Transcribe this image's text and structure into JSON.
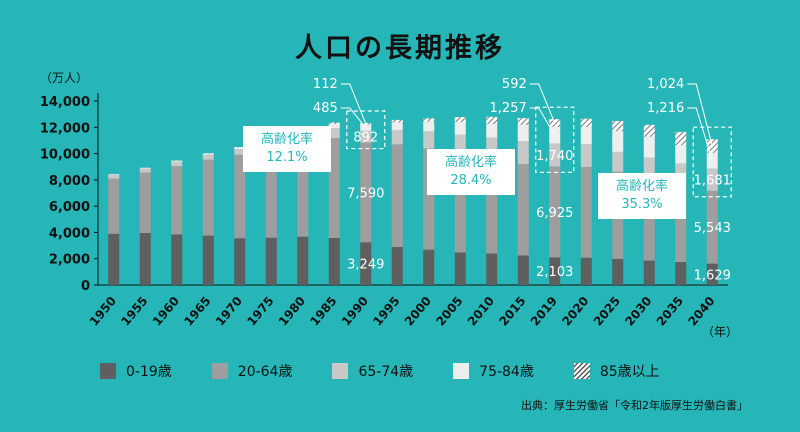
{
  "chart_data": {
    "type": "bar",
    "stacked": true,
    "title": "人口の長期推移",
    "ylabel": "（万人）",
    "xlabel_unit": "（年）",
    "ylim": [
      0,
      14000
    ],
    "yticks": [
      "0",
      "2,000",
      "4,000",
      "6,000",
      "8,000",
      "10,000",
      "12,000",
      "14,000"
    ],
    "categories": [
      "1950",
      "1955",
      "1960",
      "1965",
      "1970",
      "1975",
      "1980",
      "1985",
      "1990",
      "1995",
      "2000",
      "2005",
      "2010",
      "2015",
      "2019",
      "2020",
      "2025",
      "2030",
      "2035",
      "2040"
    ],
    "series": [
      {
        "name": "0-19歳",
        "values": [
          3900,
          3960,
          3850,
          3760,
          3560,
          3600,
          3680,
          3580,
          3249,
          2900,
          2690,
          2480,
          2400,
          2250,
          2103,
          2080,
          1990,
          1860,
          1750,
          1629
        ]
      },
      {
        "name": "20-64歳",
        "values": [
          4200,
          4600,
          5200,
          5780,
          6350,
          6830,
          7170,
          7600,
          7590,
          7800,
          7700,
          7550,
          7300,
          6950,
          6925,
          6900,
          6640,
          6400,
          6000,
          5543
        ]
      },
      {
        "name": "65-74歳",
        "values": [
          270,
          300,
          340,
          380,
          430,
          560,
          660,
          760,
          892,
          1100,
          1300,
          1400,
          1520,
          1750,
          1740,
          1740,
          1500,
          1430,
          1500,
          1681
        ]
      },
      {
        "name": "75-84歳",
        "values": [
          50,
          60,
          70,
          90,
          120,
          170,
          230,
          320,
          485,
          590,
          770,
          970,
          1050,
          1250,
          1257,
          1300,
          1600,
          1600,
          1400,
          1216
        ]
      },
      {
        "name": "85歳以上",
        "values": [
          10,
          10,
          20,
          20,
          40,
          50,
          70,
          100,
          112,
          170,
          220,
          380,
          520,
          500,
          592,
          630,
          750,
          900,
          1000,
          1024
        ]
      }
    ],
    "data_labels": [
      {
        "category": "1990",
        "series": "0-19歳",
        "text": "3,249"
      },
      {
        "category": "1990",
        "series": "20-64歳",
        "text": "7,590"
      },
      {
        "category": "1990",
        "series": "65-74歳",
        "text": "892"
      },
      {
        "category": "1990",
        "series": "75-84歳",
        "text": "485"
      },
      {
        "category": "1990",
        "series": "85歳以上",
        "text": "112"
      },
      {
        "category": "2019",
        "series": "0-19歳",
        "text": "2,103"
      },
      {
        "category": "2019",
        "series": "20-64歳",
        "text": "6,925"
      },
      {
        "category": "2019",
        "series": "65-74歳",
        "text": "1,740"
      },
      {
        "category": "2019",
        "series": "75-84歳",
        "text": "1,257"
      },
      {
        "category": "2019",
        "series": "85歳以上",
        "text": "592"
      },
      {
        "category": "2040",
        "series": "0-19歳",
        "text": "1,629"
      },
      {
        "category": "2040",
        "series": "20-64歳",
        "text": "5,543"
      },
      {
        "category": "2040",
        "series": "65-74歳",
        "text": "1,681"
      },
      {
        "category": "2040",
        "series": "75-84歳",
        "text": "1,216"
      },
      {
        "category": "2040",
        "series": "85歳以上",
        "text": "1,024"
      }
    ],
    "callouts": [
      {
        "category": "1990",
        "line1": "高齢化率",
        "line2": "12.1%"
      },
      {
        "category": "2019",
        "line1": "高齢化率",
        "line2": "28.4%"
      },
      {
        "category": "2040",
        "line1": "高齢化率",
        "line2": "35.3%"
      }
    ],
    "colors": {
      "0-19歳": "#5f5f5f",
      "20-64歳": "#9e9e9e",
      "65-74歳": "#c8c8c8",
      "75-84歳": "#eeeeee",
      "85歳以上": "#ffffff",
      "background": "#27b6b8"
    },
    "legend_position": "bottom-left",
    "source": "出典：厚生労働省「令和2年版厚生労働白書」"
  }
}
